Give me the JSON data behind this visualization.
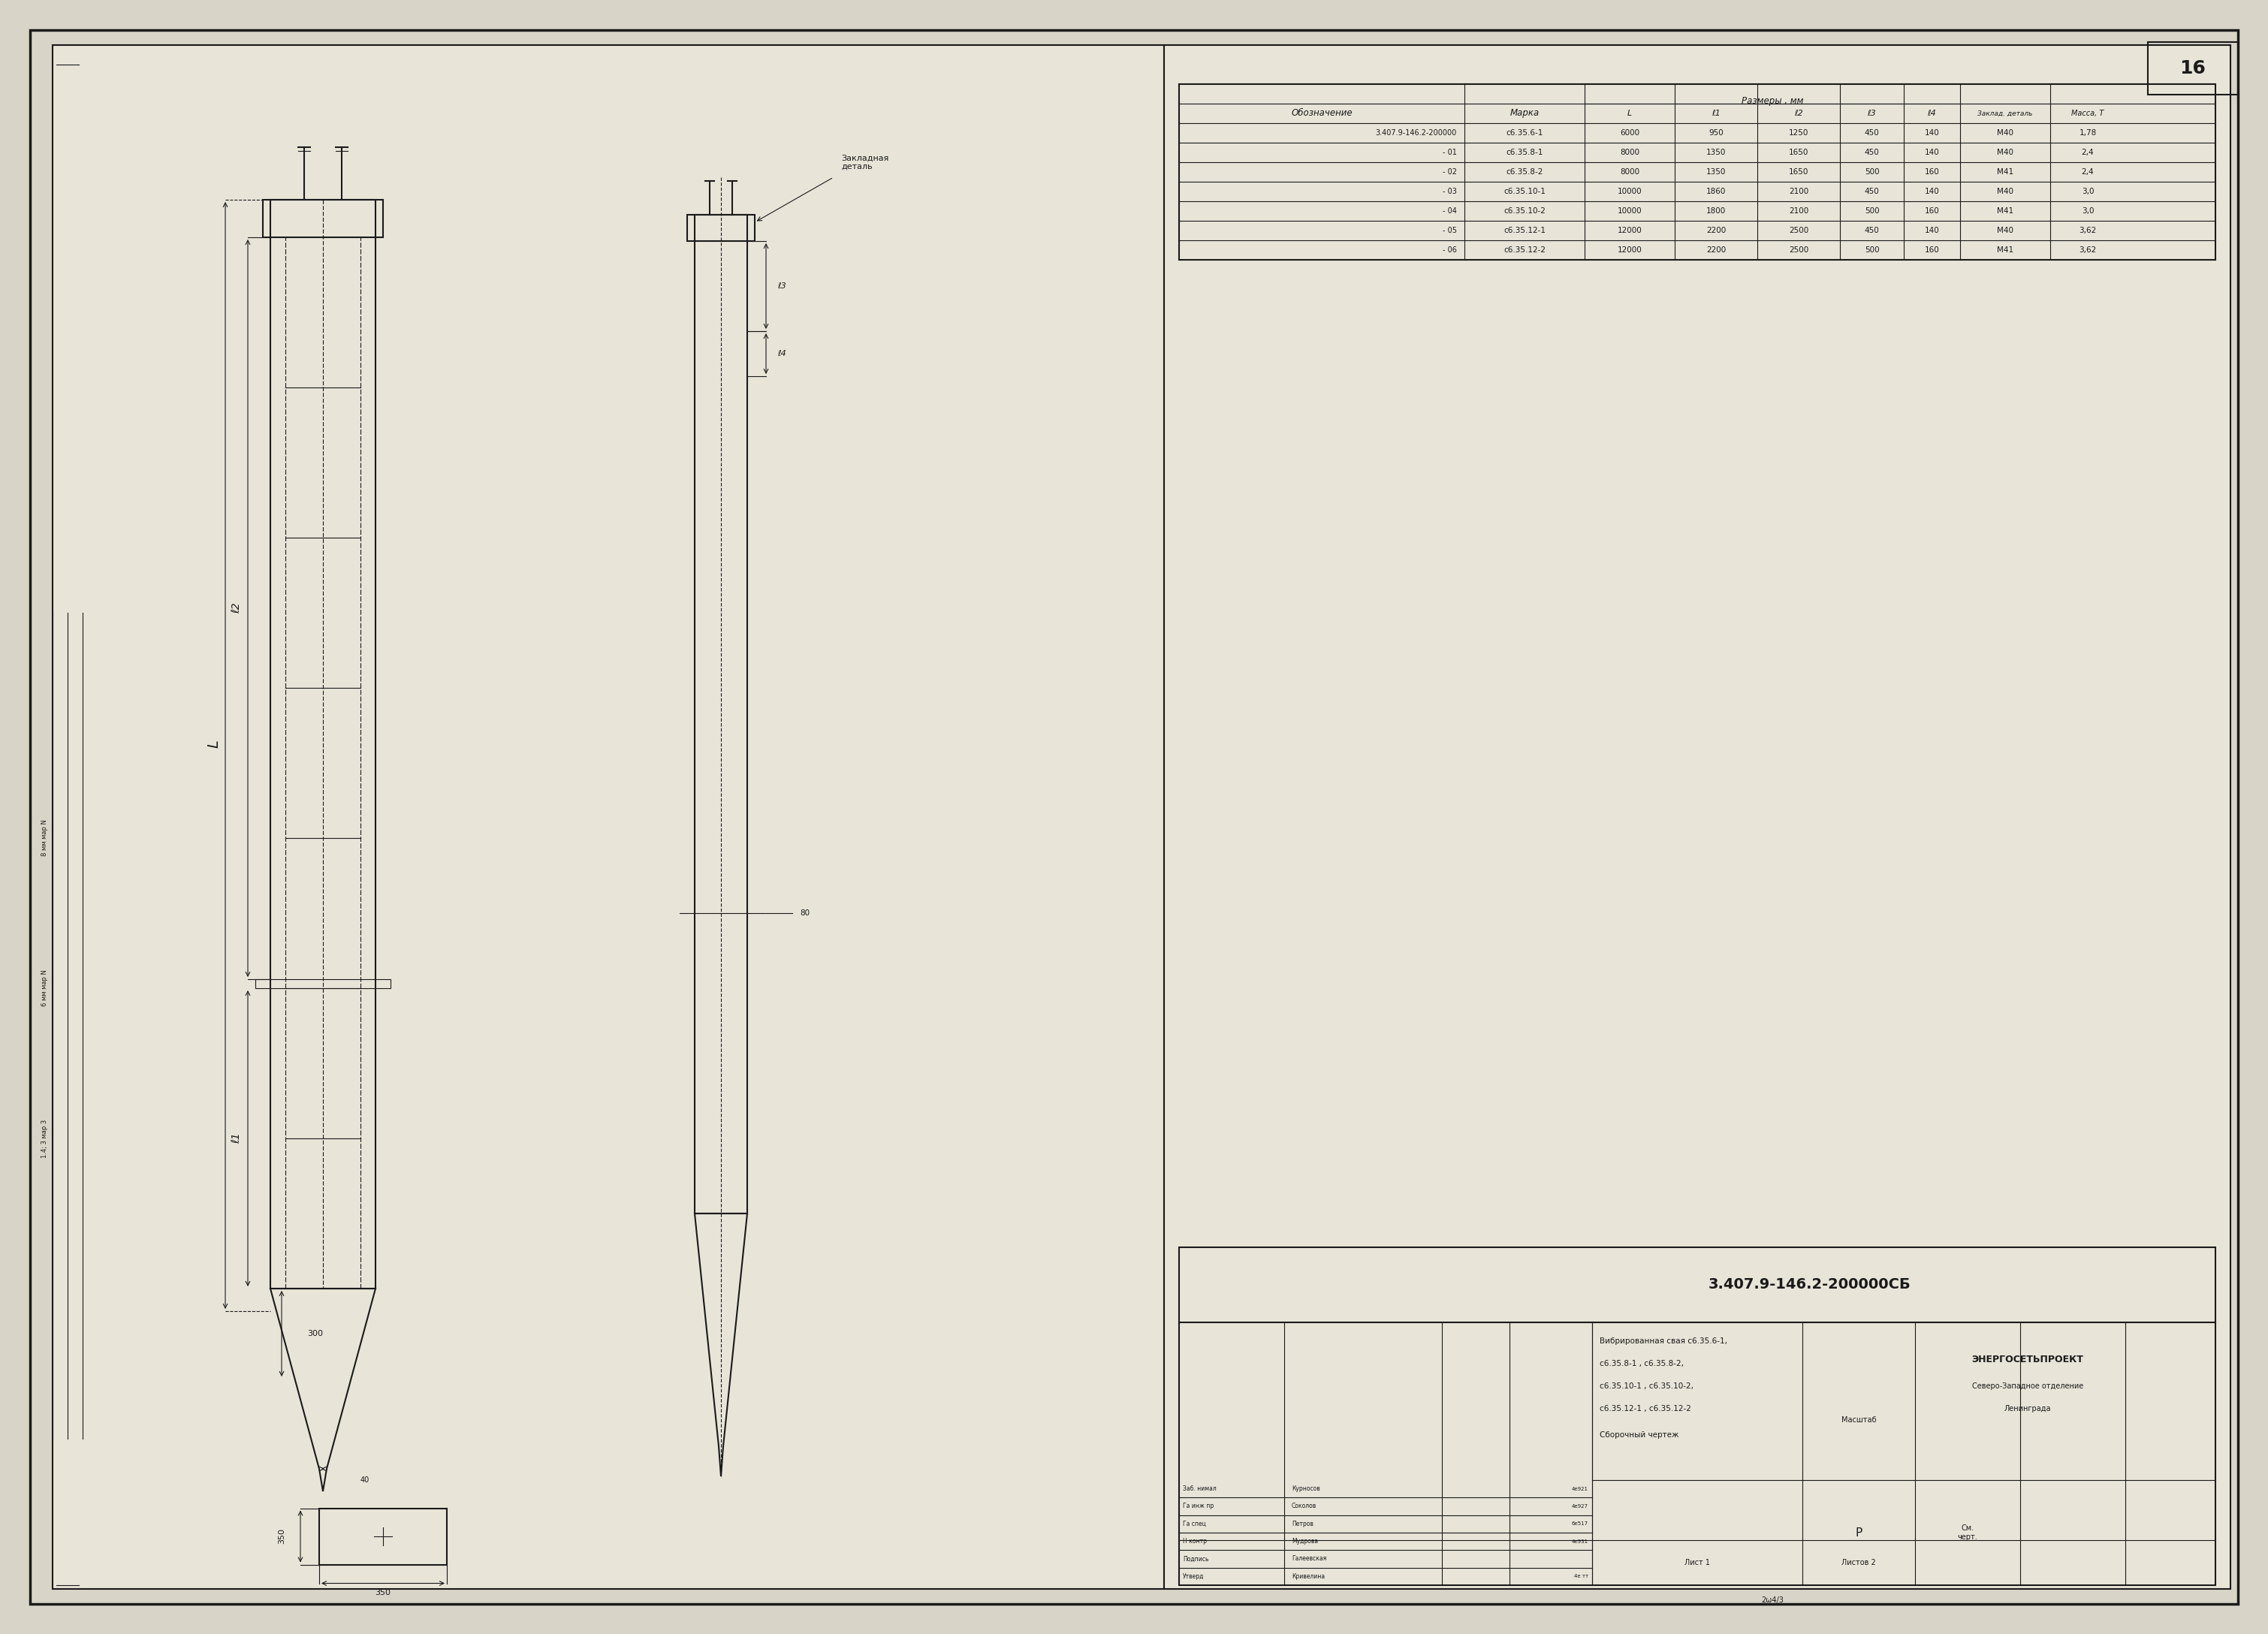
{
  "page_number": "16",
  "bg_color": "#d8d4c8",
  "drawing_bg": "#e8e4d8",
  "line_color": "#1a1a1a",
  "table_title_main": "3.407.9-146.2-200000",
  "table_header_col1": "Обозначение",
  "table_header_col2": "Марка",
  "table_header_razm": "Размеры , мм",
  "table_header_zakl": "Заклад. деталь",
  "table_header_massa": "Масса, Т",
  "table_col_L": "L",
  "table_col_l1": "ℓ1",
  "table_col_l2": "ℓ2",
  "table_col_l3": "ℓ3",
  "table_col_l4": "ℓ4",
  "table_rows": [
    {
      "oboz": "3.407.9-146.2-200000",
      "marka": "с6.35.6-1",
      "L": "6000",
      "l1": "950",
      "l2": "1250",
      "l3": "450",
      "l4": "140",
      "zakl": "М40",
      "massa": "1,78"
    },
    {
      "oboz": "- 01",
      "marka": "с6.35.8-1",
      "L": "8000",
      "l1": "1350",
      "l2": "1650",
      "l3": "450",
      "l4": "140",
      "zakl": "М40",
      "massa": "2,4"
    },
    {
      "oboz": "- 02",
      "marka": "с6.35.8-2",
      "L": "8000",
      "l1": "1350",
      "l2": "1650",
      "l3": "500",
      "l4": "160",
      "zakl": "М41",
      "massa": "2,4"
    },
    {
      "oboz": "- 03",
      "marka": "с6.35.10-1",
      "L": "10000",
      "l1": "1860",
      "l2": "2100",
      "l3": "450",
      "l4": "140",
      "zakl": "М40",
      "massa": "3,0"
    },
    {
      "oboz": "- 04",
      "marka": "с6.35.10-2",
      "L": "10000",
      "l1": "1800",
      "l2": "2100",
      "l3": "500",
      "l4": "160",
      "zakl": "М41",
      "massa": "3,0"
    },
    {
      "oboz": "- 05",
      "marka": "с6.35.12-1",
      "L": "12000",
      "l1": "2200",
      "l2": "2500",
      "l3": "450",
      "l4": "140",
      "zakl": "М40",
      "massa": "3,62"
    },
    {
      "oboz": "- 06",
      "marka": "с6.35.12-2",
      "L": "12000",
      "l1": "2200",
      "l2": "2500",
      "l3": "500",
      "l4": "160",
      "zakl": "М41",
      "massa": "3,62"
    }
  ],
  "stamp_doc": "3.407.9-146.2-200000СБ",
  "stamp_name": "Вибрированная свая с6.35.6-1,",
  "stamp_name2": "с6.35.8-1 , с6.35.8-2,",
  "stamp_name3": "с6.35.10-1 , с6.35.10-2,",
  "stamp_name4": "с6.35.12-1 , с6.35.12-2",
  "stamp_type": "Сборочный чертеж",
  "stamp_stadia": "Р",
  "stamp_massa": "См.\nчерт.",
  "stamp_masshtab": "Масштаб",
  "stamp_list": "Лист 1",
  "stamp_listov": "Листов 2",
  "stamp_org": "ЭНЕРГОСЕТЬПРОЕКТ",
  "stamp_org2": "Северо-Западное отделение",
  "stamp_org3": "Ленинграда",
  "stamp_rows": [
    {
      "role": "Заб. нимал",
      "name": "Курносов",
      "sign": "",
      "date": "4е921"
    },
    {
      "role": "Га инж пр",
      "name": "Соколов",
      "sign": "",
      "date": "4е927"
    },
    {
      "role": "Га спец",
      "name": "Петров",
      "sign": "",
      "date": "6е517"
    },
    {
      "role": "Н контр",
      "name": "Мудрова",
      "sign": "",
      "date": "4е931"
    },
    {
      "role": "Подпись",
      "name": "Галеевская",
      "sign": "",
      "date": ""
    },
    {
      "role": "Утверд",
      "name": "Кривелина",
      "sign": "",
      "date": "4е тт"
    }
  ],
  "zakl_label": "Закладная\nдеталь",
  "dim_300": "300",
  "dim_40": "40",
  "dim_350": "350",
  "dim_350b": "350",
  "dim_80": "80",
  "left_label_L": "L",
  "left_label_l2": "ℓ2",
  "left_label_l1": "ℓ1",
  "left_note1": "8 мм мар N",
  "left_note2": "6 мм мар N",
  "left_note3": "1.4; 3 мар 3",
  "doc_number": "2ѡ4/3"
}
